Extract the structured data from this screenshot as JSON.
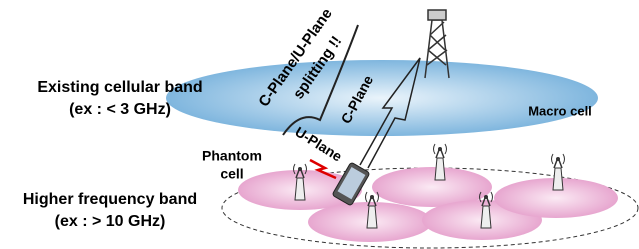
{
  "header": {
    "title_lines": [
      "C-Plane/U-Plane",
      "splitting !!"
    ]
  },
  "bands": [
    {
      "name": "Existing cellular band",
      "range": "(ex : < 3 GHz)"
    },
    {
      "name": "Higher frequency band",
      "range": "(ex : > 10 GHz)"
    }
  ],
  "labels": {
    "macro": "Macro cell",
    "c_plane": "C-Plane",
    "u_plane": "U-Plane",
    "phantom_lines": [
      "Phantom",
      "cell"
    ]
  }
}
